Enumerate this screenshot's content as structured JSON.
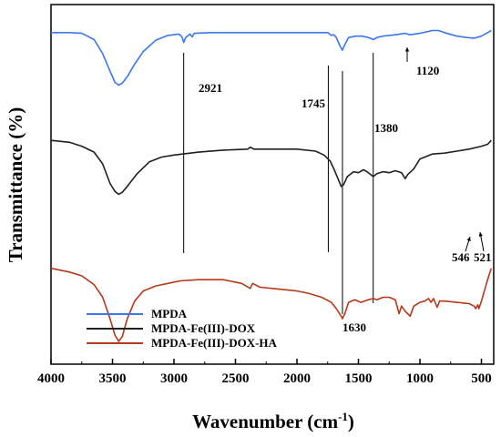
{
  "chart_data": {
    "type": "line",
    "title": "",
    "xlabel": "Wavenumber (cm",
    "xlabel_sup": "-1",
    "xlabel_close": ")",
    "ylabel": "Transmittance (%)",
    "xlim": [
      4000,
      400
    ],
    "x_reversed": true,
    "x_ticks": [
      "4000",
      "3500",
      "3000",
      "2500",
      "2000",
      "1500",
      "1000",
      "500"
    ],
    "y_ticks_shown": false,
    "grid": false,
    "legend_position": "bottom-left",
    "series": [
      {
        "name": "MPDA",
        "color": "#3b78e7",
        "points": [
          [
            4000,
            0.05
          ],
          [
            3850,
            0.05
          ],
          [
            3750,
            0.06
          ],
          [
            3650,
            0.15
          ],
          [
            3580,
            0.35
          ],
          [
            3520,
            0.6
          ],
          [
            3480,
            0.76
          ],
          [
            3450,
            0.8
          ],
          [
            3420,
            0.77
          ],
          [
            3380,
            0.68
          ],
          [
            3320,
            0.5
          ],
          [
            3250,
            0.32
          ],
          [
            3150,
            0.16
          ],
          [
            3050,
            0.09
          ],
          [
            2960,
            0.07
          ],
          [
            2935,
            0.11
          ],
          [
            2921,
            0.19
          ],
          [
            2905,
            0.12
          ],
          [
            2870,
            0.07
          ],
          [
            2852,
            0.11
          ],
          [
            2835,
            0.06
          ],
          [
            2700,
            0.05
          ],
          [
            2200,
            0.05
          ],
          [
            1800,
            0.05
          ],
          [
            1750,
            0.05
          ],
          [
            1720,
            0.09
          ],
          [
            1700,
            0.08
          ],
          [
            1680,
            0.12
          ],
          [
            1650,
            0.24
          ],
          [
            1630,
            0.3
          ],
          [
            1610,
            0.22
          ],
          [
            1580,
            0.12
          ],
          [
            1520,
            0.1
          ],
          [
            1470,
            0.1
          ],
          [
            1420,
            0.12
          ],
          [
            1390,
            0.14
          ],
          [
            1380,
            0.15
          ],
          [
            1350,
            0.12
          ],
          [
            1300,
            0.1
          ],
          [
            1200,
            0.08
          ],
          [
            1120,
            0.06
          ],
          [
            1080,
            0.08
          ],
          [
            1000,
            0.06
          ],
          [
            900,
            0.02
          ],
          [
            850,
            0.02
          ],
          [
            800,
            0.05
          ],
          [
            700,
            0.1
          ],
          [
            620,
            0.12
          ],
          [
            560,
            0.13
          ],
          [
            500,
            0.1
          ],
          [
            450,
            0.05
          ],
          [
            420,
            0.02
          ]
        ]
      },
      {
        "name": "MPDA-Fe(III)-DOX",
        "color": "#202020",
        "points": [
          [
            4000,
            0.41
          ],
          [
            3850,
            0.43
          ],
          [
            3750,
            0.47
          ],
          [
            3650,
            0.53
          ],
          [
            3580,
            0.65
          ],
          [
            3520,
            0.85
          ],
          [
            3480,
            0.93
          ],
          [
            3450,
            0.96
          ],
          [
            3420,
            0.94
          ],
          [
            3380,
            0.88
          ],
          [
            3300,
            0.75
          ],
          [
            3200,
            0.63
          ],
          [
            3100,
            0.58
          ],
          [
            3000,
            0.56
          ],
          [
            2930,
            0.55
          ],
          [
            2800,
            0.53
          ],
          [
            2600,
            0.51
          ],
          [
            2400,
            0.5
          ],
          [
            2380,
            0.48
          ],
          [
            2350,
            0.5
          ],
          [
            2200,
            0.5
          ],
          [
            2000,
            0.5
          ],
          [
            1850,
            0.52
          ],
          [
            1780,
            0.56
          ],
          [
            1730,
            0.62
          ],
          [
            1700,
            0.7
          ],
          [
            1660,
            0.82
          ],
          [
            1640,
            0.88
          ],
          [
            1620,
            0.86
          ],
          [
            1590,
            0.78
          ],
          [
            1540,
            0.73
          ],
          [
            1500,
            0.74
          ],
          [
            1460,
            0.71
          ],
          [
            1430,
            0.73
          ],
          [
            1400,
            0.76
          ],
          [
            1380,
            0.78
          ],
          [
            1350,
            0.75
          ],
          [
            1300,
            0.73
          ],
          [
            1250,
            0.74
          ],
          [
            1200,
            0.72
          ],
          [
            1150,
            0.74
          ],
          [
            1120,
            0.8
          ],
          [
            1100,
            0.76
          ],
          [
            1050,
            0.7
          ],
          [
            1000,
            0.6
          ],
          [
            900,
            0.55
          ],
          [
            800,
            0.54
          ],
          [
            700,
            0.52
          ],
          [
            600,
            0.5
          ],
          [
            500,
            0.47
          ],
          [
            450,
            0.45
          ],
          [
            420,
            0.41
          ]
        ]
      },
      {
        "name": "MPDA-Fe(III)-DOX-HA",
        "color": "#b5391a",
        "points": [
          [
            4000,
            0.72
          ],
          [
            3850,
            0.75
          ],
          [
            3750,
            0.78
          ],
          [
            3650,
            0.85
          ],
          [
            3580,
            0.95
          ],
          [
            3520,
            1.12
          ],
          [
            3480,
            1.25
          ],
          [
            3450,
            1.3
          ],
          [
            3420,
            1.26
          ],
          [
            3380,
            1.12
          ],
          [
            3320,
            0.98
          ],
          [
            3250,
            0.9
          ],
          [
            3150,
            0.86
          ],
          [
            3050,
            0.84
          ],
          [
            2950,
            0.82
          ],
          [
            2800,
            0.81
          ],
          [
            2600,
            0.81
          ],
          [
            2450,
            0.84
          ],
          [
            2380,
            0.88
          ],
          [
            2360,
            0.84
          ],
          [
            2300,
            0.87
          ],
          [
            2200,
            0.88
          ],
          [
            2100,
            0.89
          ],
          [
            2000,
            0.9
          ],
          [
            1900,
            0.92
          ],
          [
            1800,
            0.95
          ],
          [
            1720,
            0.99
          ],
          [
            1680,
            1.04
          ],
          [
            1640,
            1.1
          ],
          [
            1630,
            1.12
          ],
          [
            1610,
            1.08
          ],
          [
            1580,
            0.99
          ],
          [
            1530,
            0.97
          ],
          [
            1480,
            0.99
          ],
          [
            1420,
            0.97
          ],
          [
            1380,
            0.96
          ],
          [
            1350,
            0.97
          ],
          [
            1300,
            0.95
          ],
          [
            1250,
            0.95
          ],
          [
            1200,
            0.97
          ],
          [
            1170,
            1.08
          ],
          [
            1150,
            1.02
          ],
          [
            1120,
            1.06
          ],
          [
            1080,
            1.1
          ],
          [
            1050,
            1.02
          ],
          [
            1000,
            0.99
          ],
          [
            960,
            0.98
          ],
          [
            930,
            0.96
          ],
          [
            910,
            0.99
          ],
          [
            890,
            0.96
          ],
          [
            860,
            1.03
          ],
          [
            840,
            0.98
          ],
          [
            800,
            0.98
          ],
          [
            700,
            0.99
          ],
          [
            600,
            1.0
          ],
          [
            560,
            1.02
          ],
          [
            546,
            1.04
          ],
          [
            530,
            1.01
          ],
          [
            521,
            1.04
          ],
          [
            500,
            0.98
          ],
          [
            470,
            0.88
          ],
          [
            440,
            0.78
          ],
          [
            420,
            0.72
          ]
        ]
      }
    ],
    "annotations": [
      {
        "label": "2921",
        "x": 2921
      },
      {
        "label": "1745",
        "x": 1745
      },
      {
        "label": "1380",
        "x": 1380
      },
      {
        "label": "1120",
        "x": 1120
      },
      {
        "label": "1630",
        "x": 1630
      },
      {
        "label": "546",
        "x": 546
      },
      {
        "label": "521",
        "x": 521
      }
    ]
  }
}
